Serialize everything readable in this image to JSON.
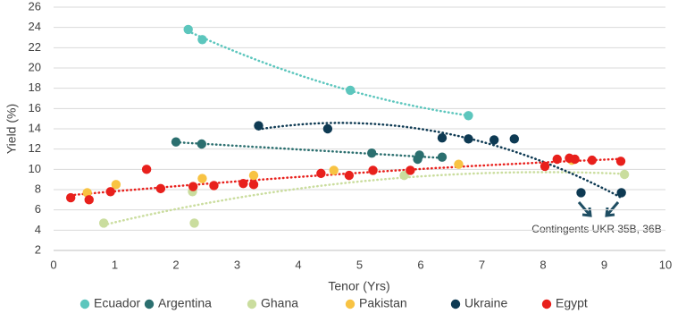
{
  "chart_data": {
    "type": "scatter",
    "x_label": "Tenor (Yrs)",
    "y_label": "Yield (%)",
    "xlim": [
      0,
      10
    ],
    "xticks": [
      0,
      1,
      2,
      3,
      4,
      5,
      6,
      7,
      8,
      9,
      10
    ],
    "ylim": [
      2,
      26
    ],
    "yticks": [
      2,
      4,
      6,
      8,
      10,
      12,
      14,
      16,
      18,
      20,
      22,
      24,
      26
    ],
    "grid": true,
    "legend": "bottom",
    "annotation": "Contingents UKR 35B, 36B",
    "series": [
      {
        "name": "Ecuador",
        "color": "#5cc6bd",
        "trendline_order": 2,
        "x": [
          2.2,
          2.43,
          4.85,
          6.78
        ],
        "values": [
          23.8,
          22.8,
          17.8,
          15.3
        ]
      },
      {
        "name": "Argentina",
        "color": "#2b6f6f",
        "trendline_order": 1,
        "x": [
          2.0,
          2.42,
          5.2,
          5.98,
          5.95,
          6.35
        ],
        "values": [
          12.7,
          12.5,
          11.6,
          11.4,
          11.0,
          11.2
        ]
      },
      {
        "name": "Ghana",
        "color": "#cadd9e",
        "trendline_order": 2,
        "x": [
          0.82,
          2.27,
          2.3,
          5.73,
          9.33
        ],
        "values": [
          4.7,
          7.8,
          4.7,
          9.4,
          9.5
        ]
      },
      {
        "name": "Pakistan",
        "color": "#f8c343",
        "trendline_order": 0,
        "x": [
          0.55,
          1.02,
          2.43,
          3.27,
          4.58,
          6.62,
          8.47
        ],
        "values": [
          7.7,
          8.5,
          9.1,
          9.4,
          9.9,
          10.5,
          10.9
        ]
      },
      {
        "name": "Ukraine",
        "color": "#0e3a53",
        "trendline_order": 2,
        "x": [
          3.35,
          4.48,
          6.35,
          6.78,
          7.2,
          7.53,
          8.62,
          9.28
        ],
        "values": [
          14.3,
          14.0,
          13.1,
          13.0,
          12.9,
          13.0,
          7.7,
          7.7
        ]
      },
      {
        "name": "Egypt",
        "color": "#e8201c",
        "trendline_order": 2,
        "x": [
          0.28,
          0.58,
          0.93,
          1.52,
          1.75,
          2.28,
          2.62,
          3.1,
          3.27,
          4.37,
          4.83,
          5.22,
          5.83,
          8.03,
          8.23,
          8.43,
          8.52,
          8.8,
          9.27
        ],
        "values": [
          7.2,
          7.0,
          7.8,
          10.0,
          8.1,
          8.3,
          8.4,
          8.6,
          8.5,
          9.6,
          9.4,
          9.9,
          9.9,
          10.3,
          11.0,
          11.1,
          11.0,
          10.9,
          10.8
        ]
      }
    ]
  }
}
